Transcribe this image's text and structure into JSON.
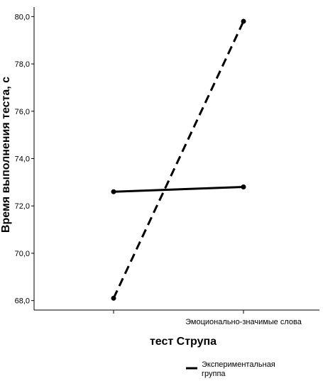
{
  "chart_data": {
    "type": "line",
    "title": "",
    "xlabel": "тест Струпа",
    "ylabel": "Время выполнения теста, с",
    "categories": [
      "",
      "Эмоционально-значимые слова"
    ],
    "ylim": [
      67.6,
      80.4
    ],
    "yticks": [
      "68,0",
      "70,0",
      "72,0",
      "74,0",
      "76,0",
      "78,0",
      "80,0"
    ],
    "grid": false,
    "legend_position": "bottom-right",
    "series": [
      {
        "name": "Экспериментальная группа",
        "style": "solid",
        "values": [
          72.6,
          72.8
        ]
      },
      {
        "name": "",
        "style": "dashed",
        "values": [
          68.1,
          79.8
        ]
      }
    ]
  }
}
